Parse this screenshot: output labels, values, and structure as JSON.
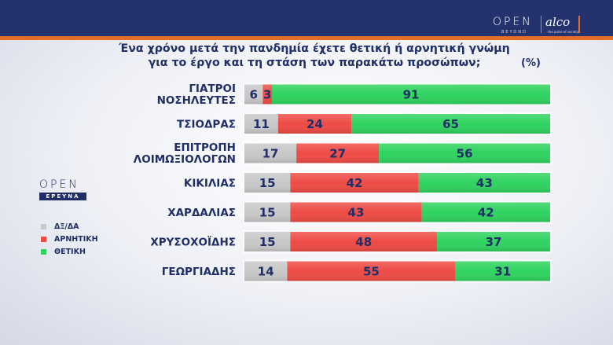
{
  "header": {
    "brand_open": "OPEN",
    "brand_beyond": "BEYOND",
    "brand_alco": "alco",
    "brand_alco_tag": "the pulse of society"
  },
  "badge": {
    "open": "OPEN",
    "ereyna": "ΕΡΕΥΝΑ"
  },
  "colors": {
    "dk": "#c8c8c8",
    "negative": "#ee4b45",
    "positive": "#2fd35f",
    "text": "#1f2e66",
    "header": "#24336e",
    "accent": "#e56d2a"
  },
  "chart_data": {
    "type": "bar",
    "orientation": "horizontal",
    "stacked": true,
    "title_line1": "Ένα χρόνο μετά την πανδημία έχετε θετική ή αρνητική γνώμη",
    "title_line2": "για το έργο και τη στάση των παρακάτω προσώπων;",
    "unit": "(%)",
    "categories": [
      [
        "ΓΙΑΤΡΟΙ",
        "ΝΟΣΗΛΕΥΤΕΣ"
      ],
      [
        "ΤΣΙΟΔΡΑΣ"
      ],
      [
        "ΕΠΙΤΡΟΠΗ",
        "ΛΟΙΜΩΞΙΟΛΟΓΩΝ"
      ],
      [
        "ΚΙΚΙΛΙΑΣ"
      ],
      [
        "ΧΑΡΔΑΛΙΑΣ"
      ],
      [
        "ΧΡΥΣΟΧΟΪΔΗΣ"
      ],
      [
        "ΓΕΩΡΓΙΑΔΗΣ"
      ]
    ],
    "series": [
      {
        "name": "ΔΞ/ΔΑ",
        "color": "#c8c8c8",
        "values": [
          6,
          11,
          17,
          15,
          15,
          15,
          14
        ]
      },
      {
        "name": "ΑΡΝΗΤΙΚΗ",
        "color": "#ee4b45",
        "values": [
          3,
          24,
          27,
          42,
          43,
          48,
          55
        ]
      },
      {
        "name": "ΘΕΤΙΚΗ",
        "color": "#2fd35f",
        "values": [
          91,
          65,
          56,
          43,
          42,
          37,
          31
        ]
      }
    ],
    "xlim": [
      0,
      100
    ],
    "legend_position": "left"
  }
}
